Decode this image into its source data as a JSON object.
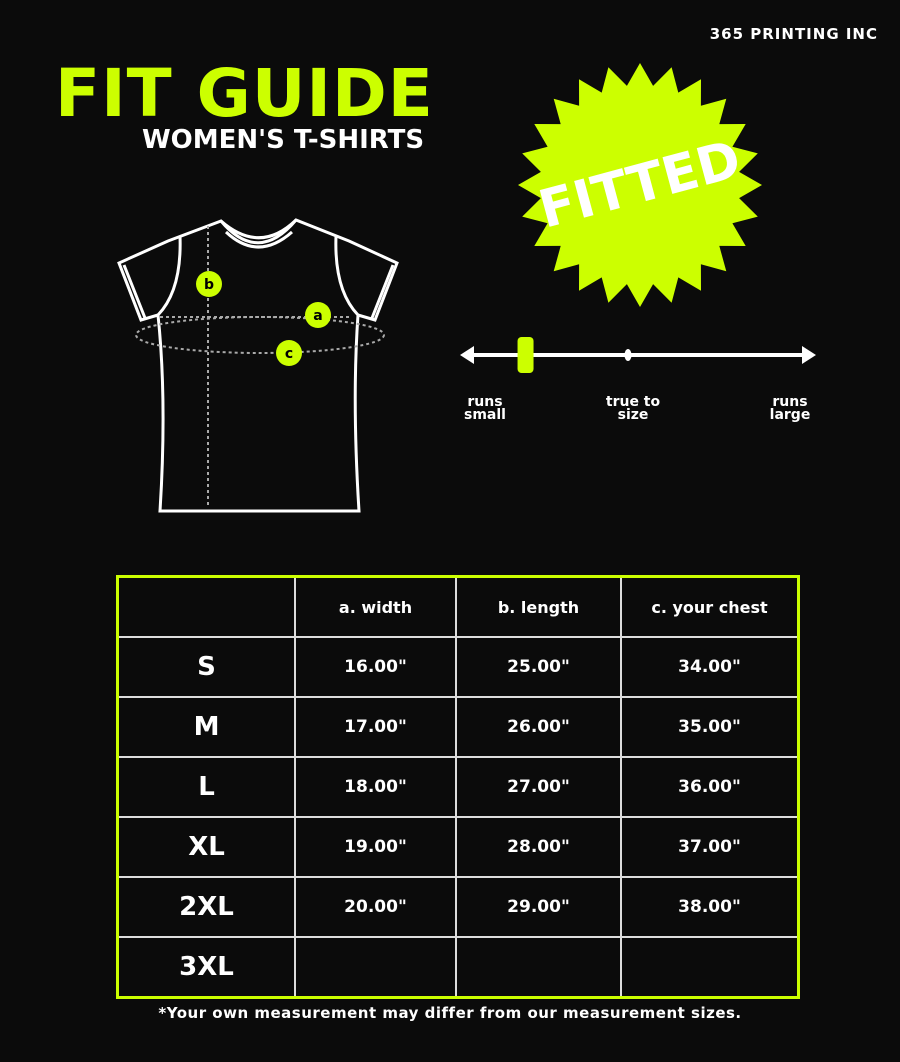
{
  "brand": "365 PRINTING INC",
  "title": "FIT GUIDE",
  "subtitle": "WOMEN'S T-SHIRTS",
  "badge": "FITTED",
  "colors": {
    "accent": "#ccff00",
    "background": "#0b0b0b"
  },
  "diagram": {
    "labels": [
      "a",
      "b",
      "c"
    ]
  },
  "fit_scale": {
    "position": 0.18,
    "left": "runs small",
    "middle": "true to size",
    "right": "runs large"
  },
  "table": {
    "headers": [
      "",
      "a. width",
      "b. length",
      "c. your chest"
    ],
    "rows": [
      [
        "S",
        "16.00\"",
        "25.00\"",
        "34.00\""
      ],
      [
        "M",
        "17.00\"",
        "26.00\"",
        "35.00\""
      ],
      [
        "L",
        "18.00\"",
        "27.00\"",
        "36.00\""
      ],
      [
        "XL",
        "19.00\"",
        "28.00\"",
        "37.00\""
      ],
      [
        "2XL",
        "20.00\"",
        "29.00\"",
        "38.00\""
      ],
      [
        "3XL",
        "",
        "",
        ""
      ]
    ]
  },
  "note": "*Your own measurement may differ from our measurement sizes."
}
